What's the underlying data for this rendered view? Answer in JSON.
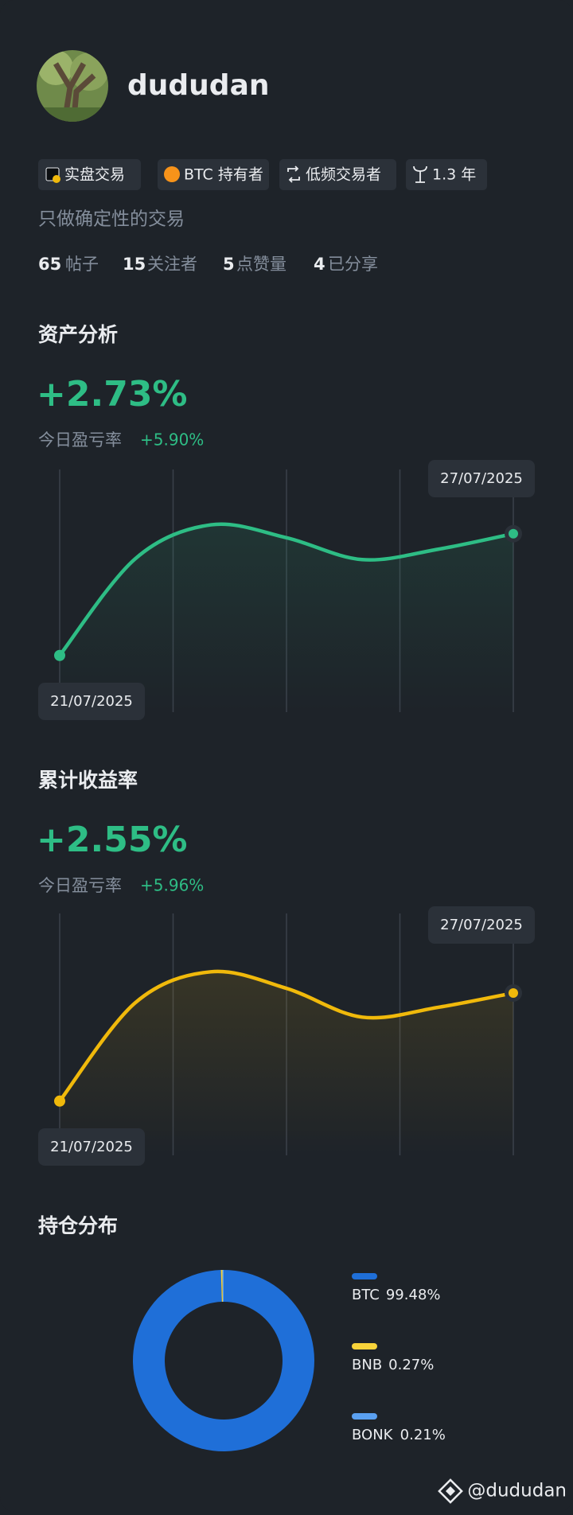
{
  "profile": {
    "name": "dududan",
    "tags": [
      "实盘交易",
      "BTC 持有者",
      "低频交易者",
      "1.3 年"
    ],
    "bio": "只做确定性的交易",
    "stats": [
      {
        "value": 65,
        "label": "帖子"
      },
      {
        "value": 15,
        "label": "关注者"
      },
      {
        "value": 5,
        "label": "点赞量"
      },
      {
        "value": 4,
        "label": "已分享"
      }
    ]
  },
  "chart_data": [
    {
      "type": "line",
      "title": "资产分析",
      "headline": "+2.73%",
      "subtitle": "今日盈亏率",
      "subtitle_value": "+5.90%",
      "categories": [
        "21/07/2025",
        null,
        null,
        null,
        null,
        null,
        "27/07/2025"
      ],
      "values": [
        0,
        2.17,
        2.93,
        2.64,
        2.15,
        2.38,
        2.73
      ],
      "color": "#2ebd85",
      "ylim": [
        -1.2,
        4.1
      ]
    },
    {
      "type": "line",
      "title": "累计收益率",
      "headline": "+2.55%",
      "subtitle": "今日盈亏率",
      "subtitle_value": "+5.96%",
      "categories": [
        "21/07/2025",
        null,
        null,
        null,
        null,
        null,
        "27/07/2025"
      ],
      "values": [
        0,
        2.32,
        3.05,
        2.66,
        1.98,
        2.21,
        2.55
      ],
      "color": "#f0b90b",
      "ylim": [
        -1.28,
        4.37
      ]
    },
    {
      "type": "pie",
      "title": "持仓分布",
      "categories": [
        "BTC",
        "BNB",
        "BONK"
      ],
      "values": [
        99.48,
        0.27,
        0.21
      ],
      "value_labels": [
        "99.48%",
        "0.27%",
        "0.21%"
      ],
      "colors": [
        "#1f6fd8",
        "#f8d33a",
        "#5aa0f0"
      ]
    }
  ],
  "footer": "@dududan"
}
